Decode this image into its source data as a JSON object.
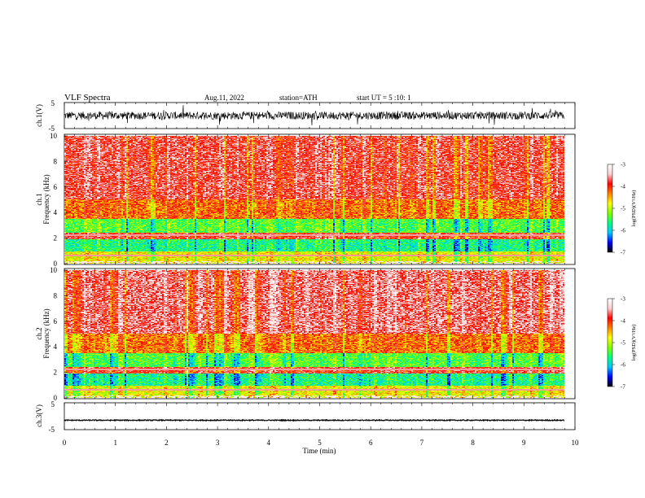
{
  "header": {
    "title": "VLF Spectra",
    "date": "Aug.11, 2022",
    "station": "station=ATH",
    "start_ut": "start UT =  5 :10: 1"
  },
  "colors": {
    "spectrum": [
      "#000000",
      "#0000ff",
      "#00c8ff",
      "#00ff80",
      "#80ff00",
      "#ffff00",
      "#ff8000",
      "#ff0000",
      "#ffd0d0",
      "#ffffff"
    ],
    "trace": "#000000"
  },
  "chart_data": [
    {
      "type": "line",
      "ylabel": "ch.1(V)",
      "ylim": [
        -5,
        5
      ],
      "yticks": [
        "5",
        "-5"
      ],
      "baseline": 0,
      "description_level": "noisy"
    },
    {
      "type": "heatmap",
      "ylabel_top": "ch.1",
      "ylabel": "Frequency (kHz)",
      "ylim": [
        0,
        10
      ],
      "yticks": [
        "0",
        "2",
        "4",
        "6",
        "8",
        "10"
      ],
      "colorbar": {
        "label": "log(PSD)(V²/Hz)",
        "range": [
          -7,
          -3
        ],
        "ticks": [
          "-3",
          "-4",
          "-5",
          "-6",
          "-7"
        ]
      }
    },
    {
      "type": "heatmap",
      "ylabel_top": "ch.2",
      "ylabel": "Frequency (kHz)",
      "ylim": [
        0,
        10
      ],
      "yticks": [
        "0",
        "2",
        "4",
        "6",
        "8",
        "10"
      ],
      "colorbar": {
        "label": "log(PSD)(V²/Hz)",
        "range": [
          -7,
          -3
        ],
        "ticks": [
          "-3",
          "-4",
          "-5",
          "-6",
          "-7"
        ]
      }
    },
    {
      "type": "line",
      "ylabel": "ch.3(V)",
      "ylim": [
        -5,
        5
      ],
      "yticks": [
        "5",
        "-5"
      ],
      "baseline": -1.5,
      "description_level": "flat"
    }
  ],
  "xaxis": {
    "label": "Time (min)",
    "xlim": [
      0,
      10
    ],
    "ticks": [
      "0",
      "1",
      "2",
      "3",
      "4",
      "5",
      "6",
      "7",
      "8",
      "9",
      "10"
    ],
    "data_end": 9.8
  }
}
